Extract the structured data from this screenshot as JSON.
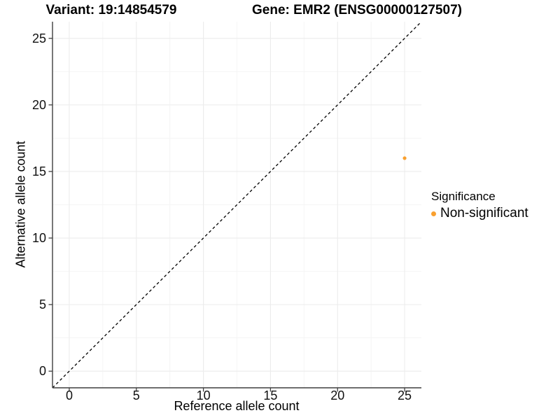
{
  "colors": {
    "point_orange": "#F9A02F",
    "grid_major": "#ECECEC",
    "grid_minor": "#F5F5F5",
    "axis_line": "#3F3F3F",
    "identity_line": "#000000",
    "text": "#000000"
  },
  "chart_data": {
    "type": "scatter",
    "titles": [
      "Variant: 19:14854579",
      "Gene: EMR2 (ENSG00000127507)"
    ],
    "xlabel": "Reference allele count",
    "ylabel": "Alternative allele count",
    "xlim": [
      -1.25,
      26.25
    ],
    "ylim": [
      -1.25,
      26.25
    ],
    "x_ticks": [
      0,
      5,
      10,
      15,
      20,
      25
    ],
    "y_ticks": [
      0,
      5,
      10,
      15,
      20,
      25
    ],
    "x_minor": [
      2.5,
      7.5,
      12.5,
      17.5,
      22.5
    ],
    "y_minor": [
      2.5,
      7.5,
      12.5,
      17.5,
      22.5
    ],
    "grid": true,
    "reference_line": {
      "kind": "identity y=x",
      "style": "dashed",
      "color": "#000000"
    },
    "series": [
      {
        "name": "Non-significant",
        "color": "#F9A02F",
        "points": [
          {
            "x": 25,
            "y": 16
          }
        ]
      }
    ],
    "legend": {
      "title": "Significance",
      "position": "right",
      "items": [
        {
          "label": "Non-significant",
          "color": "#F9A02F"
        }
      ]
    }
  }
}
